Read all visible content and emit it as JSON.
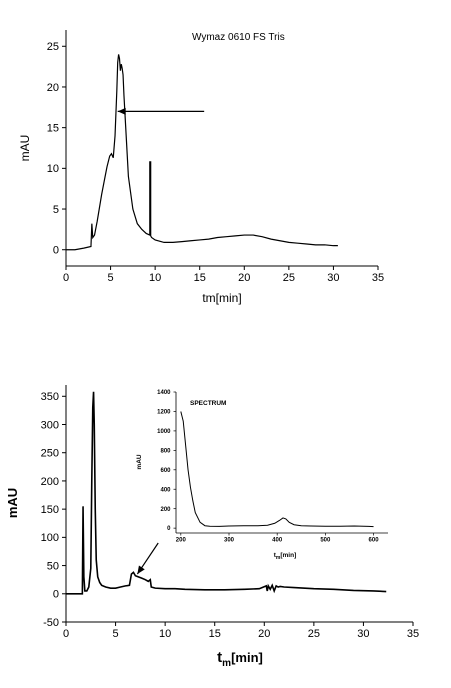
{
  "chart_data": [
    {
      "type": "line",
      "title": "Wymaz 0610 FS Tris",
      "xlabel": "tm[min]",
      "ylabel": "mAU",
      "xlim": [
        0,
        35
      ],
      "ylim": [
        -2,
        27
      ],
      "x_ticks": [
        0,
        5,
        10,
        15,
        20,
        25,
        30,
        35
      ],
      "y_ticks": [
        0,
        5,
        10,
        15,
        20,
        25
      ],
      "grid": false,
      "series": [
        {
          "x": [
            0,
            1,
            2,
            2.8,
            2.9,
            3.0,
            3.2,
            3.5,
            4.0,
            4.3,
            4.6,
            4.9,
            5.1,
            5.3,
            5.5,
            5.7,
            5.8,
            5.9,
            6.0,
            6.1,
            6.2,
            6.3,
            6.4,
            6.5,
            6.7,
            7.0,
            7.5,
            8.0,
            8.5,
            9.0,
            9.4,
            9.4,
            9.5,
            9.5,
            9.6,
            10,
            11,
            12,
            13,
            14,
            15,
            16,
            17,
            18,
            19,
            20,
            21,
            22,
            23,
            24,
            25,
            26,
            27,
            28,
            29,
            30,
            30.5
          ],
          "y": [
            0,
            0,
            0.2,
            0.4,
            3.2,
            1.5,
            1.8,
            3.5,
            6.8,
            8.5,
            10.2,
            11.5,
            11.8,
            11.3,
            14.0,
            19.5,
            23.0,
            24.0,
            23.5,
            22.0,
            22.8,
            22.3,
            21.5,
            19.0,
            15.0,
            9.0,
            5.0,
            3.2,
            2.5,
            2.0,
            1.8,
            10.8,
            10.8,
            1.7,
            1.5,
            1.2,
            0.9,
            0.9,
            1.0,
            1.1,
            1.2,
            1.3,
            1.5,
            1.6,
            1.7,
            1.8,
            1.8,
            1.6,
            1.3,
            1.1,
            0.9,
            0.8,
            0.7,
            0.6,
            0.6,
            0.5,
            0.5
          ]
        }
      ],
      "annotations": [
        {
          "type": "arrow",
          "from": [
            15.5,
            17
          ],
          "to": [
            5.8,
            17
          ]
        }
      ]
    },
    {
      "type": "line",
      "title": "",
      "xlabel": "t",
      "xlabel_sub": "m",
      "xlabel_rest": "[min]",
      "ylabel": "mAU",
      "xlim": [
        0,
        35
      ],
      "ylim": [
        -50,
        370
      ],
      "x_ticks": [
        0,
        5,
        10,
        15,
        20,
        25,
        30,
        35
      ],
      "y_ticks": [
        -50,
        0,
        50,
        100,
        150,
        200,
        250,
        300,
        350
      ],
      "grid": false,
      "series": [
        {
          "x": [
            0,
            1.0,
            1.5,
            1.65,
            1.72,
            1.8,
            1.9,
            2.1,
            2.3,
            2.5,
            2.6,
            2.7,
            2.78,
            2.85,
            2.95,
            3.05,
            3.2,
            3.4,
            3.6,
            4.0,
            4.5,
            5.0,
            5.5,
            6.0,
            6.4,
            6.6,
            6.8,
            7.0,
            7.3,
            7.6,
            8.0,
            8.3,
            8.5,
            8.6,
            9,
            10,
            11,
            12,
            14,
            16,
            18,
            19.5,
            20.2,
            20.3,
            20.4,
            20.6,
            20.8,
            21.0,
            21.2,
            21.4,
            21.6,
            22,
            23,
            25,
            27,
            29,
            31,
            32.3
          ],
          "y": [
            0,
            0,
            0,
            0,
            155,
            30,
            5,
            5,
            12,
            45,
            200,
            330,
            358,
            300,
            150,
            60,
            30,
            20,
            15,
            12,
            10,
            10,
            12,
            14,
            15,
            35,
            38,
            32,
            30,
            28,
            25,
            22,
            25,
            12,
            10,
            9,
            9,
            8,
            7,
            7,
            8,
            9,
            14,
            5,
            14,
            8,
            15,
            5,
            14,
            12,
            13,
            12,
            11,
            9,
            8,
            6,
            5,
            4
          ]
        }
      ],
      "annotations": [
        {
          "type": "arrow",
          "from": [
            9.3,
            90
          ],
          "to": [
            7.2,
            35
          ]
        }
      ],
      "inset": {
        "type": "line",
        "label": "SPECTRUM",
        "xlabel": "t",
        "xlabel_sub": "m",
        "xlabel_rest": "[min]",
        "ylabel": "mAU",
        "xlim": [
          190,
          630
        ],
        "ylim": [
          -50,
          1400
        ],
        "x_ticks": [
          200,
          300,
          400,
          500,
          600
        ],
        "y_ticks": [
          0,
          200,
          400,
          600,
          800,
          1000,
          1200,
          1400
        ],
        "series": [
          {
            "x": [
              200,
              205,
              210,
              215,
              220,
              225,
              230,
              240,
              250,
              260,
              280,
              300,
              330,
              360,
              380,
              395,
              405,
              412,
              418,
              425,
              435,
              450,
              470,
              500,
              530,
              560,
              590,
              600
            ],
            "y": [
              1200,
              1100,
              850,
              600,
              420,
              280,
              160,
              60,
              25,
              20,
              18,
              22,
              25,
              25,
              30,
              50,
              80,
              105,
              95,
              60,
              35,
              25,
              22,
              20,
              20,
              22,
              18,
              15
            ]
          }
        ]
      }
    }
  ]
}
